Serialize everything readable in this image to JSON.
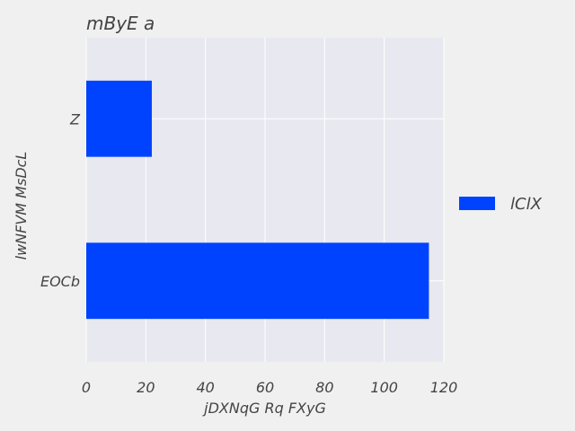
{
  "chart_data": {
    "type": "bar",
    "orientation": "horizontal",
    "title": "mByE a",
    "xlabel": "jDXNqG Rq FXyG",
    "ylabel": "lwNFVM MsDcL",
    "categories": [
      "Z",
      "EOCb"
    ],
    "series": [
      {
        "name": "lClX",
        "values": [
          22,
          115
        ],
        "color": "#0043ff"
      }
    ],
    "xlim": [
      0,
      120
    ],
    "xticks": [
      0,
      20,
      40,
      60,
      80,
      100,
      120
    ],
    "grid": true,
    "legend_position": "right",
    "plot_background": "#e8e8f0",
    "page_background": "#f0f0f0"
  }
}
